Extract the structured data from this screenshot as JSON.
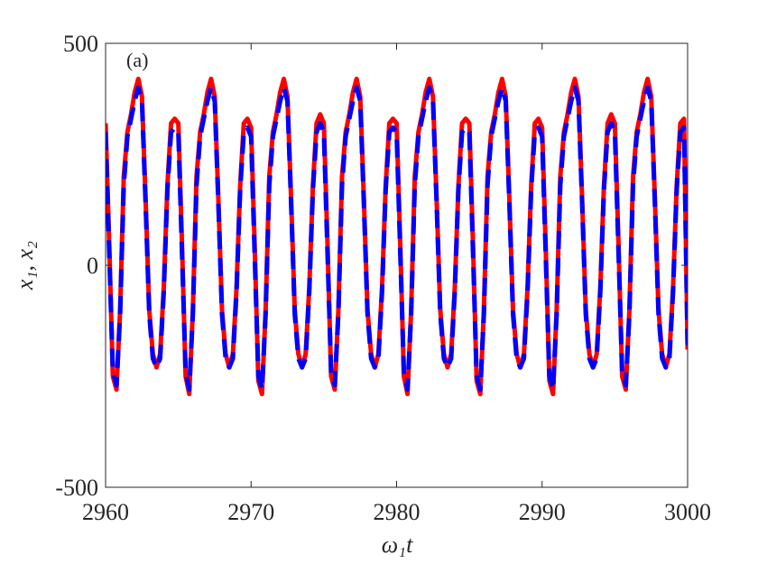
{
  "chart_data": {
    "type": "line",
    "ylabel": "x₁, x₂",
    "xlabel": "ω₁t",
    "annotation": "(a)",
    "xlim": [
      2960,
      3000
    ],
    "xticks": [
      2960,
      2970,
      2980,
      2990,
      3000
    ],
    "ylim": [
      -500,
      500
    ],
    "yticks": [
      -500,
      0,
      500
    ],
    "x": [
      2960,
      2960.25,
      2960.5,
      2960.75,
      2961,
      2961.25,
      2961.5,
      2961.75,
      2962,
      2962.25,
      2962.5,
      2962.75,
      2963,
      2963.25,
      2963.5,
      2963.75,
      2964,
      2964.25,
      2964.5,
      2964.75,
      2965,
      2965.25,
      2965.5,
      2965.75,
      2966,
      2966.25,
      2966.5,
      2966.75,
      2967,
      2967.25,
      2967.5,
      2967.75,
      2968,
      2968.25,
      2968.5,
      2968.75,
      2969,
      2969.25,
      2969.5,
      2969.75,
      2970,
      2970.25,
      2970.5,
      2970.75,
      2971,
      2971.25,
      2971.5,
      2971.75,
      2972,
      2972.25,
      2972.5,
      2972.75,
      2973,
      2973.25,
      2973.5,
      2973.75,
      2974,
      2974.25,
      2974.5,
      2974.75,
      2975,
      2975.25,
      2975.5,
      2975.75,
      2976,
      2976.25,
      2976.5,
      2976.75,
      2977,
      2977.25,
      2977.5,
      2977.75,
      2978,
      2978.25,
      2978.5,
      2978.75,
      2979,
      2979.25,
      2979.5,
      2979.75,
      2980,
      2980.25,
      2980.5,
      2980.75,
      2981,
      2981.25,
      2981.5,
      2981.75,
      2982,
      2982.25,
      2982.5,
      2982.75,
      2983,
      2983.25,
      2983.5,
      2983.75,
      2984,
      2984.25,
      2984.5,
      2984.75,
      2985,
      2985.25,
      2985.5,
      2985.75,
      2986,
      2986.25,
      2986.5,
      2986.75,
      2987,
      2987.25,
      2987.5,
      2987.75,
      2988,
      2988.25,
      2988.5,
      2988.75,
      2989,
      2989.25,
      2989.5,
      2989.75,
      2990,
      2990.25,
      2990.5,
      2990.75,
      2991,
      2991.25,
      2991.5,
      2991.75,
      2992,
      2992.25,
      2992.5,
      2992.75,
      2993,
      2993.25,
      2993.5,
      2993.75,
      2994,
      2994.25,
      2994.5,
      2994.75,
      2995,
      2995.25,
      2995.5,
      2995.75,
      2996,
      2996.25,
      2996.5,
      2996.75,
      2997,
      2997.25,
      2997.5,
      2997.75,
      2998,
      2998.25,
      2998.5,
      2998.75,
      2999,
      2999.25,
      2999.5,
      2999.75,
      3000
    ],
    "series": [
      {
        "color": "#ff0000",
        "dash": false,
        "values": [
          320,
          50,
          -250,
          -280,
          -100,
          200,
          300,
          340,
          390,
          420,
          380,
          150,
          -100,
          -200,
          -230,
          -200,
          -50,
          180,
          320,
          330,
          320,
          50,
          -250,
          -290,
          -100,
          200,
          300,
          340,
          390,
          420,
          380,
          150,
          -100,
          -200,
          -230,
          -200,
          -50,
          180,
          320,
          330,
          310,
          40,
          -260,
          -290,
          -100,
          200,
          300,
          340,
          390,
          420,
          380,
          150,
          -100,
          -200,
          -230,
          -200,
          -50,
          180,
          320,
          340,
          320,
          50,
          -250,
          -280,
          -100,
          200,
          300,
          340,
          390,
          420,
          380,
          150,
          -100,
          -200,
          -230,
          -200,
          -50,
          180,
          320,
          330,
          320,
          50,
          -250,
          -290,
          -100,
          200,
          300,
          340,
          390,
          420,
          380,
          150,
          -100,
          -200,
          -230,
          -200,
          -50,
          180,
          320,
          330,
          320,
          50,
          -260,
          -290,
          -100,
          200,
          300,
          340,
          390,
          420,
          380,
          150,
          -100,
          -200,
          -230,
          -200,
          -50,
          180,
          320,
          330,
          310,
          40,
          -260,
          -290,
          -100,
          200,
          300,
          340,
          390,
          420,
          380,
          150,
          -100,
          -200,
          -230,
          -200,
          -50,
          180,
          320,
          340,
          320,
          50,
          -250,
          -280,
          -100,
          200,
          300,
          340,
          390,
          420,
          380,
          150,
          -100,
          -200,
          -230,
          -200,
          -50,
          180,
          320,
          330,
          -190
        ]
      },
      {
        "color": "#0000ff",
        "dash": true,
        "values": [
          300,
          30,
          -240,
          -270,
          -110,
          180,
          290,
          330,
          370,
          400,
          370,
          140,
          -110,
          -210,
          -230,
          -210,
          -60,
          170,
          300,
          310,
          300,
          30,
          -240,
          -280,
          -110,
          180,
          290,
          330,
          370,
          400,
          370,
          140,
          -110,
          -210,
          -230,
          -210,
          -60,
          170,
          300,
          310,
          290,
          20,
          -250,
          -280,
          -110,
          180,
          290,
          330,
          370,
          400,
          370,
          140,
          -110,
          -210,
          -230,
          -210,
          -60,
          170,
          300,
          320,
          300,
          30,
          -240,
          -270,
          -110,
          180,
          290,
          330,
          370,
          400,
          370,
          140,
          -110,
          -210,
          -230,
          -210,
          -60,
          170,
          300,
          310,
          300,
          30,
          -240,
          -280,
          -110,
          180,
          290,
          330,
          370,
          400,
          370,
          140,
          -110,
          -210,
          -230,
          -210,
          -60,
          170,
          300,
          310,
          300,
          30,
          -250,
          -280,
          -110,
          180,
          290,
          330,
          370,
          400,
          370,
          140,
          -110,
          -210,
          -230,
          -210,
          -60,
          170,
          300,
          310,
          290,
          20,
          -250,
          -280,
          -110,
          180,
          290,
          330,
          370,
          400,
          370,
          140,
          -110,
          -210,
          -230,
          -210,
          -60,
          170,
          300,
          320,
          300,
          30,
          -240,
          -270,
          -110,
          180,
          290,
          330,
          370,
          400,
          370,
          140,
          -110,
          -210,
          -230,
          -210,
          -60,
          170,
          300,
          310,
          -180
        ]
      }
    ]
  }
}
